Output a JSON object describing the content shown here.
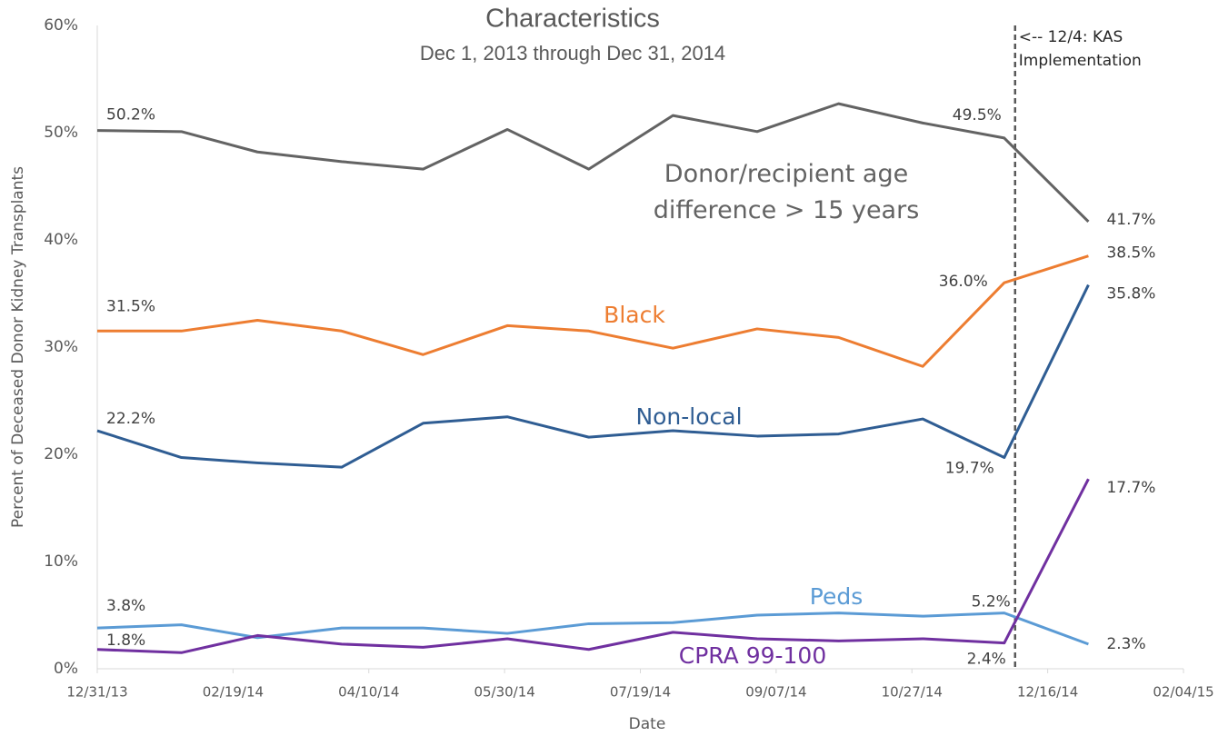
{
  "chart_data": {
    "type": "line",
    "title": "Characteristics",
    "subtitle": "Dec 1, 2013 through Dec 31, 2014",
    "x_label": "Date",
    "y_label": "Percent of Deceased Donor Kidney Transplants",
    "x": [
      "12/31/13",
      "01/31/14",
      "02/28/14",
      "03/31/14",
      "04/30/14",
      "05/31/14",
      "06/30/14",
      "07/31/14",
      "08/31/14",
      "09/30/14",
      "10/31/14",
      "11/30/14",
      "12/31/14"
    ],
    "xlim": [
      "12/31/13",
      "02/04/15"
    ],
    "xticks": [
      "12/31/13",
      "02/19/14",
      "04/10/14",
      "05/30/14",
      "07/19/14",
      "09/07/14",
      "10/27/14",
      "12/16/14",
      "02/04/15"
    ],
    "ylim": [
      0,
      60
    ],
    "yticks": [
      {
        "value": 0,
        "label": "0%"
      },
      {
        "value": 10,
        "label": "10%"
      },
      {
        "value": 20,
        "label": "20%"
      },
      {
        "value": 30,
        "label": "30%"
      },
      {
        "value": 40,
        "label": "40%"
      },
      {
        "value": 50,
        "label": "50%"
      },
      {
        "value": 60,
        "label": "60%"
      }
    ],
    "grid": false,
    "vline": {
      "x": "12/04/14",
      "label": "<-- 12/4: KAS Implementation"
    },
    "series": [
      {
        "name": "Donor/recipient age difference > 15 years",
        "color": "#636363",
        "values": [
          50.2,
          50.1,
          48.2,
          47.3,
          46.6,
          50.3,
          46.6,
          51.6,
          50.1,
          52.7,
          50.9,
          49.5,
          41.7
        ],
        "value_labels": [
          "50.2%",
          null,
          null,
          null,
          null,
          null,
          null,
          null,
          null,
          null,
          null,
          "49.5%",
          "41.7%"
        ]
      },
      {
        "name": "Black",
        "color": "#ed7d31",
        "values": [
          31.5,
          31.5,
          32.5,
          31.5,
          29.3,
          32.0,
          31.5,
          29.9,
          31.7,
          30.9,
          28.2,
          36.0,
          38.5
        ],
        "value_labels": [
          "31.5%",
          null,
          null,
          null,
          null,
          null,
          null,
          null,
          null,
          null,
          null,
          "36.0%",
          "38.5%"
        ]
      },
      {
        "name": "Non-local",
        "color": "#2f5d93",
        "values": [
          22.2,
          19.7,
          19.2,
          18.8,
          22.9,
          23.5,
          21.6,
          22.2,
          21.7,
          21.9,
          23.3,
          19.7,
          35.8
        ],
        "value_labels": [
          "22.2%",
          null,
          null,
          null,
          null,
          null,
          null,
          null,
          null,
          null,
          null,
          "19.7%",
          "35.8%"
        ]
      },
      {
        "name": "Peds",
        "color": "#5b9bd5",
        "values": [
          3.8,
          4.1,
          2.9,
          3.8,
          3.8,
          3.3,
          4.2,
          4.3,
          5.0,
          5.2,
          4.9,
          5.2,
          2.3
        ],
        "value_labels": [
          "3.8%",
          null,
          null,
          null,
          null,
          null,
          null,
          null,
          null,
          null,
          null,
          "5.2%",
          "2.3%"
        ]
      },
      {
        "name": "CPRA 99-100",
        "color": "#7030a0",
        "values": [
          1.8,
          1.5,
          3.1,
          2.3,
          2.0,
          2.8,
          1.8,
          3.4,
          2.8,
          2.6,
          2.8,
          2.4,
          17.7
        ],
        "value_labels": [
          "1.8%",
          null,
          null,
          null,
          null,
          null,
          null,
          null,
          null,
          null,
          null,
          "2.4%",
          "17.7%"
        ]
      }
    ]
  }
}
